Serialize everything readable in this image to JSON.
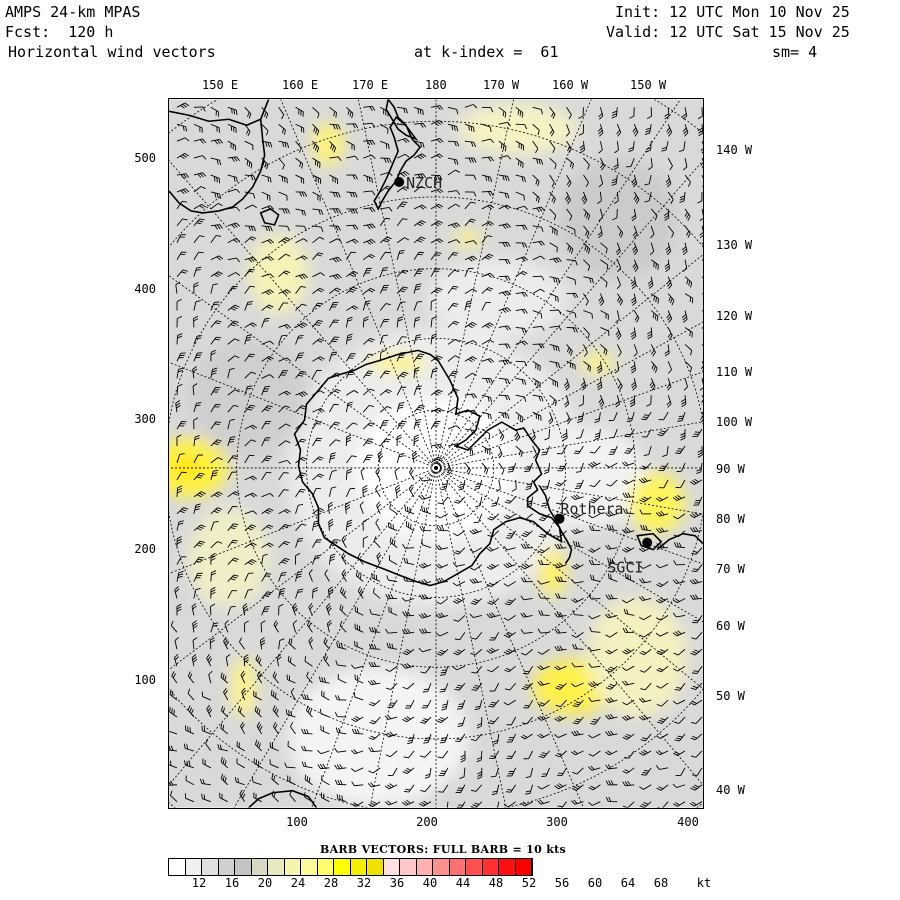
{
  "header": {
    "line1_left": "AMPS 24-km MPAS",
    "line2_left": "Fcst:  120 h",
    "line3_left": "Horizontal wind vectors",
    "line1_right": "Init: 12 UTC Mon 10 Nov 25",
    "line2_right": "Valid: 12 UTC Sat 15 Nov 25",
    "line3_center": "at k-index =  61",
    "line3_right": "sm= 4"
  },
  "top_lon_labels": [
    "150 E",
    "160 E",
    "170 E",
    "180",
    "170 W",
    "160 W",
    "150 W"
  ],
  "right_lon_labels": [
    "140 W",
    "130 W",
    "120 W",
    "110 W",
    "100 W",
    "90 W",
    "80 W",
    "70 W",
    "60 W",
    "50 W",
    "40 W"
  ],
  "y_ticks": [
    "500",
    "400",
    "300",
    "200",
    "100"
  ],
  "x_ticks": [
    "100",
    "200",
    "300",
    "400"
  ],
  "stations": {
    "nzch": "NZCH",
    "rothera": "Rothera",
    "sgci": "SGCI"
  },
  "barb_note": "BARB VECTORS:  FULL BARB = 10 kts",
  "colorbar": {
    "labels": [
      "12",
      "16",
      "20",
      "24",
      "28",
      "32",
      "36",
      "40",
      "44",
      "48",
      "52",
      "56",
      "60",
      "64",
      "68",
      "kt"
    ],
    "colors": [
      "#ffffff",
      "#f0f0f0",
      "#e0e0e0",
      "#d0d0d0",
      "#c4c4c4",
      "#d7d7c6",
      "#e8e8c0",
      "#f4f4b0",
      "#fafa98",
      "#ffff70",
      "#ffff00",
      "#f4ef00",
      "#f0e200",
      "#ffe0e0",
      "#ffc8c8",
      "#ffb0b0",
      "#ff9090",
      "#ff7070",
      "#ff5050",
      "#ff3030",
      "#ff1010",
      "#ff0000"
    ]
  }
}
